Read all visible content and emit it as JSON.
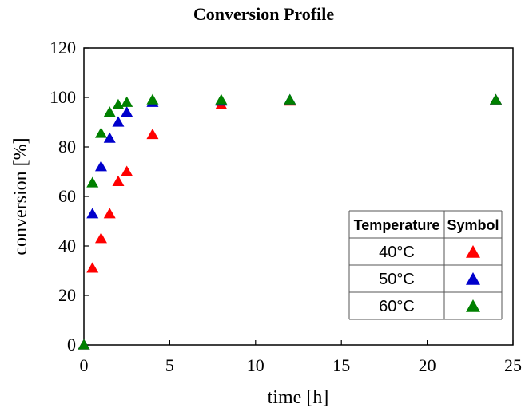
{
  "chart_data": {
    "type": "scatter",
    "title": "Conversion Profile",
    "xlabel": "time [h]",
    "ylabel": "conversion [%]",
    "xlim": [
      0,
      25
    ],
    "ylim": [
      0,
      120
    ],
    "xticks": [
      0,
      5,
      10,
      15,
      20,
      25
    ],
    "yticks": [
      0,
      20,
      40,
      60,
      80,
      100,
      120
    ],
    "grid": false,
    "marker": "triangle",
    "legend": {
      "placement": "bottom-right",
      "headers": [
        "Temperature",
        "Symbol"
      ]
    },
    "series": [
      {
        "name": "40°C",
        "color": "#ff0000",
        "x": [
          0,
          0.5,
          1,
          1.5,
          2,
          2.5,
          4,
          8,
          12,
          24
        ],
        "y": [
          0,
          31,
          43,
          53,
          66,
          70,
          85,
          97,
          98.5,
          99
        ]
      },
      {
        "name": "50°C",
        "color": "#0000cc",
        "x": [
          0,
          0.5,
          1,
          1.5,
          2,
          2.5,
          4,
          8,
          12,
          24
        ],
        "y": [
          0,
          53,
          72,
          83.5,
          90,
          94,
          98,
          98.5,
          99,
          99
        ]
      },
      {
        "name": "60°C",
        "color": "#008000",
        "x": [
          0,
          0.5,
          1,
          1.5,
          2,
          2.5,
          4,
          8,
          12,
          24
        ],
        "y": [
          0,
          65.5,
          85.5,
          94,
          97,
          98,
          99,
          99,
          99,
          99
        ]
      }
    ]
  }
}
